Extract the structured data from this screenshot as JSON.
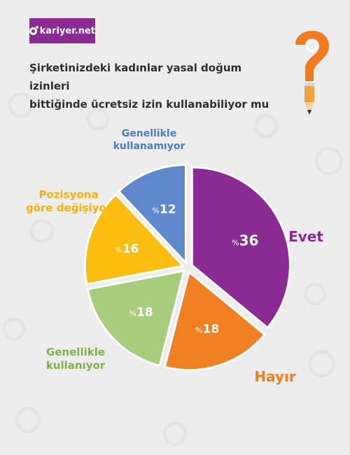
{
  "brand": {
    "logo_text": "kariyer.net"
  },
  "header": {
    "title_line1": "Şirketinizdeki kadınlar yasal doğum izinleri",
    "title_line2": "bittiğinde ücretsiz izin kullanabiliyor mu"
  },
  "icons": {
    "decoration": "question-mark-pencil-icon"
  },
  "colors": {
    "brand": "#8a2a93",
    "background": "#ededed"
  },
  "chart_data": {
    "type": "pie",
    "title": "Şirketinizdeki kadınlar yasal doğum izinleri bittiğinde ücretsiz izin kullanabiliyor mu",
    "unit_prefix": "%",
    "slices": [
      {
        "label": "Evet",
        "value": 36,
        "value_label": "36",
        "color": "#8a2a93",
        "label_color": "#8a2a93"
      },
      {
        "label": "Hayır",
        "value": 18,
        "value_label": "18",
        "color": "#f07f22",
        "label_color": "#f07f22"
      },
      {
        "label": "Genellikle kullanıyor",
        "label_lines": [
          "Genellikle",
          "kullanıyor"
        ],
        "value": 18,
        "value_label": "18",
        "color": "#a6cd7c",
        "label_color": "#7fb24a"
      },
      {
        "label": "Pozisyona göre değişiyor",
        "label_lines": [
          "Pozisyona",
          "göre değişiyor"
        ],
        "value": 16,
        "value_label": "16",
        "color": "#fbbd0f",
        "label_color": "#f5b20b"
      },
      {
        "label": "Genellikle kullanamıyor",
        "label_lines": [
          "Genellikle",
          "kullanamıyor"
        ],
        "value": 12,
        "value_label": "12",
        "color": "#5f88cd",
        "label_color": "#4d7cc8"
      }
    ]
  }
}
